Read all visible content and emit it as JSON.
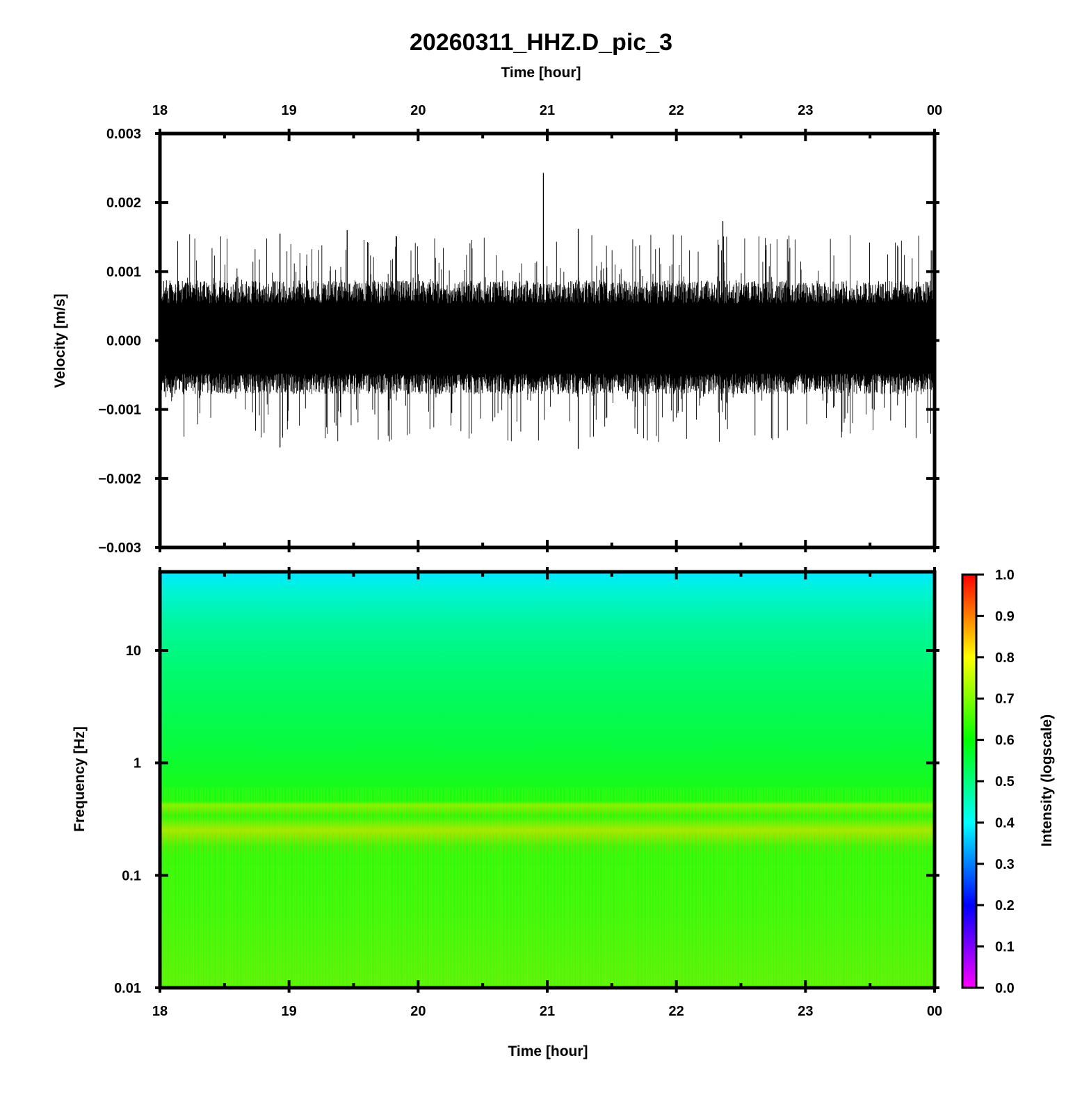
{
  "title": "20260311_HHZ.D_pic_3",
  "chart_data": [
    {
      "id": "waveform",
      "type": "line",
      "xlabel": "Time [hour]",
      "ylabel": "Velocity [m/s]",
      "x_tick_labels": [
        "18",
        "19",
        "20",
        "21",
        "22",
        "23",
        "00"
      ],
      "x_range_hours": [
        18,
        24
      ],
      "y_ticks": [
        "0.003",
        "0.002",
        "0.001",
        "0.000",
        "−0.001",
        "−0.002",
        "−0.003"
      ],
      "ylim": [
        -0.003,
        0.003
      ],
      "envelope": {
        "typical_abs_amplitude": 0.0006,
        "occasional_max": 0.00155,
        "notable_peaks": [
          {
            "hour": 20.97,
            "value": 0.00243
          },
          {
            "hour": 21.24,
            "value": -0.00157
          },
          {
            "hour": 21.24,
            "value": 0.00162
          },
          {
            "hour": 22.36,
            "value": 0.00173
          },
          {
            "hour": 18.93,
            "value": -0.00155
          },
          {
            "hour": 18.93,
            "value": 0.00155
          },
          {
            "hour": 19.45,
            "value": 0.0016
          }
        ]
      },
      "grid": false
    },
    {
      "id": "spectrogram",
      "type": "heatmap",
      "xlabel": "Time [hour]",
      "ylabel": "Frequency [Hz]",
      "x_tick_labels": [
        "18",
        "19",
        "20",
        "21",
        "22",
        "23",
        "00"
      ],
      "x_range_hours": [
        18,
        24
      ],
      "y_scale": "log",
      "y_ticks": [
        "10",
        "1",
        "0.1",
        "0.01"
      ],
      "y_tick_values": [
        10,
        1,
        0.1,
        0.01
      ],
      "ylim": [
        0.01,
        50
      ],
      "intensity_by_frequency": [
        {
          "freq": 50,
          "intensity": 0.42
        },
        {
          "freq": 30,
          "intensity": 0.47
        },
        {
          "freq": 10,
          "intensity": 0.52
        },
        {
          "freq": 3,
          "intensity": 0.55
        },
        {
          "freq": 1,
          "intensity": 0.57
        },
        {
          "freq": 0.6,
          "intensity": 0.62
        },
        {
          "freq": 0.4,
          "intensity": 0.66
        },
        {
          "freq": 0.3,
          "intensity": 0.6
        },
        {
          "freq": 0.2,
          "intensity": 0.67
        },
        {
          "freq": 0.12,
          "intensity": 0.6
        },
        {
          "freq": 0.05,
          "intensity": 0.62
        },
        {
          "freq": 0.01,
          "intensity": 0.64
        }
      ],
      "colorbar": {
        "label": "Intensity (logscale)",
        "ticks": [
          "1.0",
          "0.9",
          "0.8",
          "0.7",
          "0.6",
          "0.5",
          "0.4",
          "0.3",
          "0.2",
          "0.1",
          "0.0"
        ],
        "range": [
          0,
          1
        ],
        "colormap": [
          "#ff00ff",
          "#0000ff",
          "#00ffff",
          "#00ff00",
          "#ffff00",
          "#ff0000"
        ]
      },
      "grid": false
    }
  ]
}
